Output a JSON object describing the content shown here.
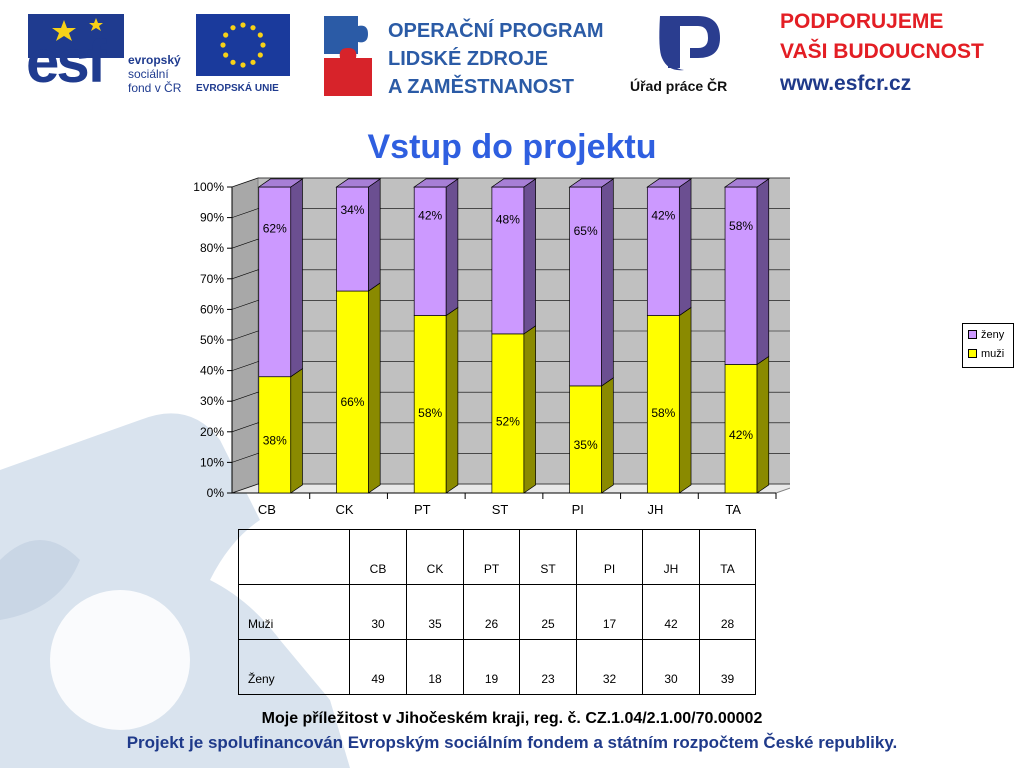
{
  "header": {
    "esf_logo_text": "esf",
    "esf_lines": [
      "evropský",
      "sociální",
      "fond v ČR"
    ],
    "eu_label": "EVROPSKÁ UNIE",
    "op_lines": [
      "OPERAČNÍ PROGRAM",
      "LIDSKÉ ZDROJE",
      "A ZAMĚSTNANOST"
    ],
    "urad_label": "Úřad práce ČR",
    "support_lines": [
      "PODPORUJEME",
      "VAŠI BUDOUCNOST",
      "www.esfcr.cz"
    ]
  },
  "title": "Vstup do projektu",
  "chart_data": {
    "type": "bar",
    "stacked": "percent",
    "categories": [
      "CB",
      "CK",
      "PT",
      "ST",
      "PI",
      "JH",
      "TA"
    ],
    "series": [
      {
        "name": "muži",
        "values": [
          38,
          66,
          58,
          52,
          35,
          58,
          42
        ],
        "labels": [
          "38%",
          "66%",
          "58%",
          "52%",
          "35%",
          "58%",
          "42%"
        ],
        "color": "#ffff00",
        "side_color": "#8a8a00",
        "top_color": "#d8d800"
      },
      {
        "name": "ženy",
        "values": [
          62,
          34,
          42,
          48,
          65,
          42,
          58
        ],
        "labels": [
          "62%",
          "34%",
          "42%",
          "48%",
          "65%",
          "42%",
          "58%"
        ],
        "color": "#cc99ff",
        "side_color": "#6b4f91",
        "top_color": "#a77fd6"
      }
    ],
    "y_ticks": [
      "0%",
      "10%",
      "20%",
      "30%",
      "40%",
      "50%",
      "60%",
      "70%",
      "80%",
      "90%",
      "100%"
    ],
    "ylim": [
      0,
      100
    ],
    "legend_entries": [
      "ženy",
      "muži"
    ],
    "legend_position": "right",
    "grid": true
  },
  "table": {
    "header": [
      "",
      "CB",
      "CK",
      "PT",
      "ST",
      "PI",
      "JH",
      "TA"
    ],
    "rows": [
      {
        "label": "Muži",
        "values": [
          "30",
          "35",
          "26",
          "25",
          "17",
          "42",
          "28"
        ]
      },
      {
        "label": "Ženy",
        "values": [
          "49",
          "18",
          "19",
          "23",
          "32",
          "30",
          "39"
        ]
      }
    ]
  },
  "footer": {
    "line1": "Moje příležitost v Jihočeském kraji, reg. č. CZ.1.04/2.1.00/70.00002",
    "line2": "Projekt je spolufinancován Evropským sociálním fondem a státním rozpočtem České republiky."
  },
  "colors": {
    "title": "#2f5fe0",
    "footer_blue": "#1f3a8a",
    "esf_blue": "#1f3b8f",
    "eu_blue": "#1a3a9c",
    "op_blue": "#2b5ba6",
    "op_red": "#d7232a",
    "support_red": "#e31e24",
    "support_blue": "#1f3a8a",
    "puzzle_bg": "#d7e1ec"
  },
  "icons": [
    "esf-star-icon",
    "eu-flag-icon",
    "puzzle-logo-icon",
    "urad-prace-logo-icon"
  ]
}
